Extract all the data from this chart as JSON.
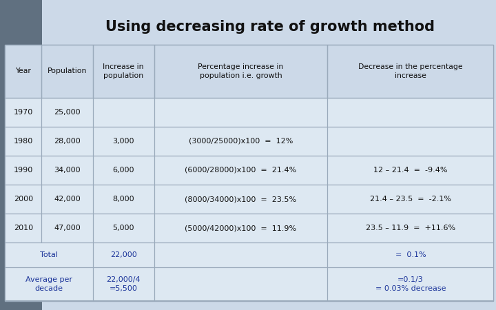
{
  "title": "Using decreasing rate of growth method",
  "title_fontsize": 15,
  "title_fontweight": "bold",
  "background_color": "#ccd9e8",
  "left_strip_color": "#607080",
  "table_bg": "#dde8f2",
  "header_bg": "#ccd9e8",
  "border_color": "#9aaabb",
  "text_color_black": "#111111",
  "text_color_blue": "#1a3399",
  "headers": [
    "Year",
    "Population",
    "Increase in\npopulation",
    "Percentage increase in\npopulation i.e. growth",
    "Decrease in the percentage\nincrease"
  ],
  "rows": [
    [
      "1970",
      "25,000",
      "",
      "",
      ""
    ],
    [
      "1980",
      "28,000",
      "3,000",
      "(3000/25000)x100  =  12%",
      ""
    ],
    [
      "1990",
      "34,000",
      "6,000",
      "(6000/28000)x100  =  21.4%",
      "12 – 21.4  =  -9.4%"
    ],
    [
      "2000",
      "42,000",
      "8,000",
      "(8000/34000)x100  =  23.5%",
      "21.4 – 23.5  =  -2.1%"
    ],
    [
      "2010",
      "47,000",
      "5,000",
      "(5000/42000)x100  =  11.9%",
      "23.5 – 11.9  =  +11.6%"
    ]
  ],
  "footer_total": [
    "Total",
    "22,000",
    "=  0.1%"
  ],
  "footer_avg": [
    "Average per\ndecade",
    "22,000/4\n=5,500",
    "=0.1/3\n= 0.03% decrease"
  ],
  "col_rel": [
    0.075,
    0.105,
    0.125,
    0.355,
    0.34
  ]
}
